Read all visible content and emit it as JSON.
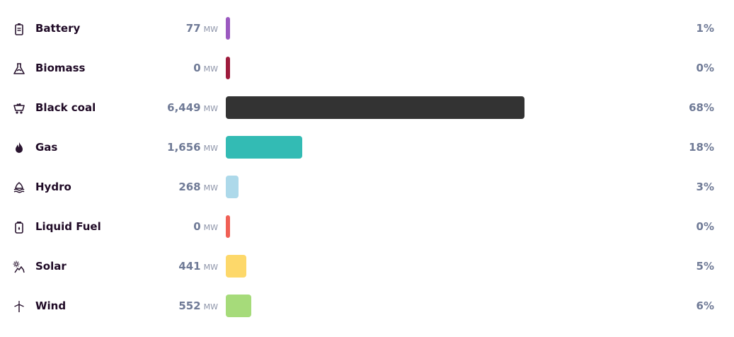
{
  "chart_data": {
    "type": "bar",
    "orientation": "horizontal",
    "unit": "MW",
    "categories": [
      "Battery",
      "Biomass",
      "Black coal",
      "Gas",
      "Hydro",
      "Liquid Fuel",
      "Solar",
      "Wind"
    ],
    "values": [
      77,
      0,
      6449,
      1656,
      268,
      0,
      441,
      552
    ],
    "value_labels": [
      "77",
      "0",
      "6,449",
      "1,656",
      "268",
      "0",
      "441",
      "552"
    ],
    "percents": [
      "1%",
      "0%",
      "68%",
      "18%",
      "3%",
      "0%",
      "5%",
      "6%"
    ],
    "colors": [
      "#9b59c0",
      "#9e1b3c",
      "#333333",
      "#33bbb4",
      "#add9ea",
      "#f06055",
      "#fdd86a",
      "#a6db7a"
    ],
    "icons": [
      "battery-icon",
      "biomass-icon",
      "coal-cart-icon",
      "flame-icon",
      "hydro-icon",
      "fuel-can-icon",
      "solar-icon",
      "wind-turbine-icon"
    ]
  }
}
